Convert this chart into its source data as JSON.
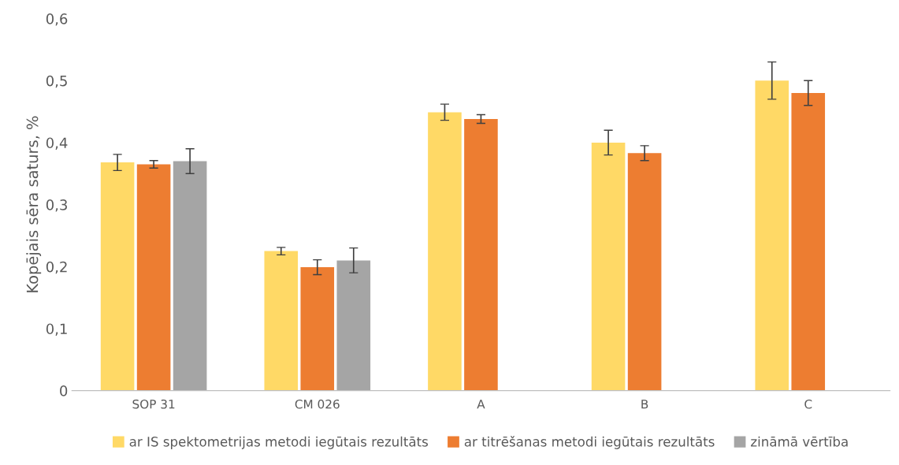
{
  "chart_data": {
    "type": "bar",
    "ylabel": "Kopējais sēra saturs, %",
    "categories": [
      "SOP 31",
      "CM 026",
      "A",
      "B",
      "C"
    ],
    "series": [
      {
        "name": "ar IS spektometrijas metodi iegūtais rezultāts",
        "color": "#ffd966",
        "values": [
          0.368,
          0.225,
          0.449,
          0.4,
          0.5
        ],
        "errors": [
          0.013,
          0.006,
          0.013,
          0.02,
          0.03
        ]
      },
      {
        "name": "ar titrēšanas metodi iegūtais rezultāts",
        "color": "#ed7d31",
        "values": [
          0.365,
          0.199,
          0.438,
          0.383,
          0.48
        ],
        "errors": [
          0.006,
          0.012,
          0.007,
          0.012,
          0.02
        ]
      },
      {
        "name": "zināmā vērtība",
        "color": "#a5a5a5",
        "values": [
          0.37,
          0.21,
          null,
          null,
          null
        ],
        "errors": [
          0.02,
          0.02,
          null,
          null,
          null
        ]
      }
    ],
    "ylim": [
      0,
      0.6
    ],
    "yticks": [
      {
        "value": 0,
        "label": "0"
      },
      {
        "value": 0.1,
        "label": "0,1"
      },
      {
        "value": 0.2,
        "label": "0,2"
      },
      {
        "value": 0.3,
        "label": "0,3"
      },
      {
        "value": 0.4,
        "label": "0,4"
      },
      {
        "value": 0.5,
        "label": "0,5"
      },
      {
        "value": 0.6,
        "label": "0,6"
      }
    ],
    "legend": "bottom"
  }
}
